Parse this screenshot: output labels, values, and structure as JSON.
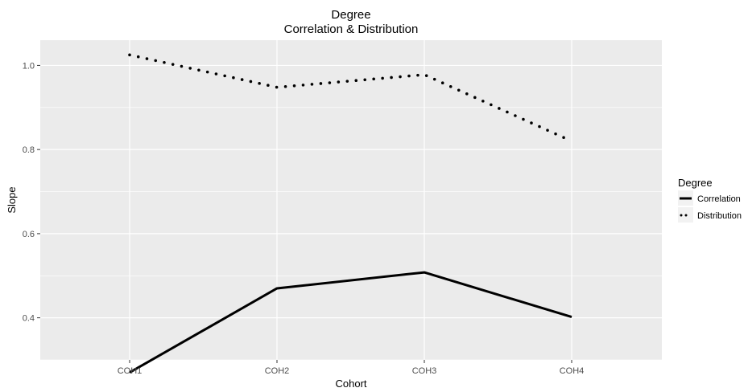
{
  "chart_data": {
    "type": "line",
    "title": "Degree",
    "subtitle": "Correlation & Distribution",
    "xlabel": "Cohort",
    "ylabel": "Slope",
    "categories": [
      "COH1",
      "COH2",
      "COH3",
      "COH4"
    ],
    "ylim": [
      0.3,
      1.06
    ],
    "yticks": [
      0.4,
      0.6,
      0.8,
      1.0
    ],
    "ytick_labels": [
      "0.4",
      "0.6",
      "0.8",
      "1.0"
    ],
    "grid": true,
    "legend": {
      "title": "Degree",
      "position": "right"
    },
    "series": [
      {
        "name": "Correlation",
        "linestyle": "solid",
        "color": "#000000",
        "values": [
          0.27,
          0.47,
          0.508,
          0.402
        ]
      },
      {
        "name": "Distribution",
        "linestyle": "dotted",
        "color": "#000000",
        "values": [
          1.025,
          0.948,
          0.978,
          0.82
        ]
      }
    ]
  },
  "colors": {
    "panel_background": "#ebebeb",
    "grid_line": "#ffffff",
    "line": "#000000"
  }
}
